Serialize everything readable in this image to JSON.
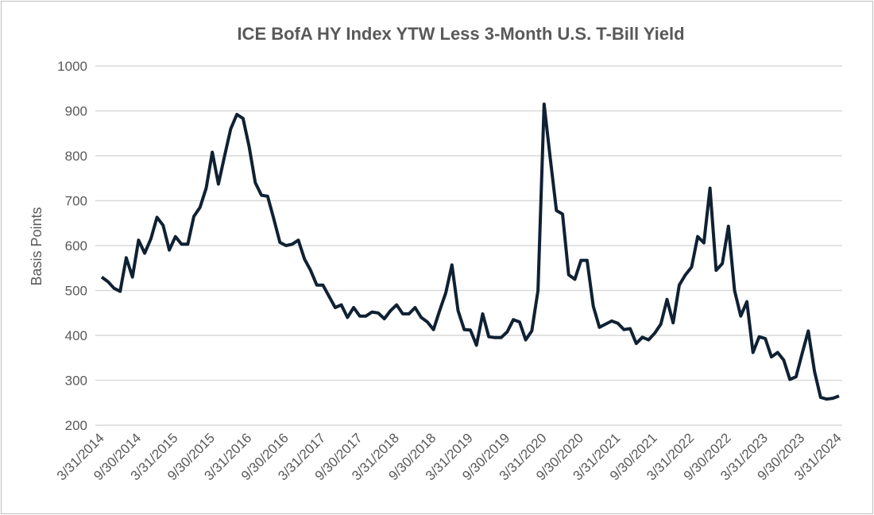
{
  "chart_data": {
    "type": "line",
    "title": "ICE BofA HY Index YTW Less 3-Month U.S. T-Bill Yield",
    "xlabel": "",
    "ylabel": "Basis Points",
    "ylim": [
      200,
      1000
    ],
    "y_ticks": [
      200,
      300,
      400,
      500,
      600,
      700,
      800,
      900,
      1000
    ],
    "x_tick_labels": [
      "3/31/2014",
      "9/30/2014",
      "3/31/2015",
      "9/30/2015",
      "3/31/2016",
      "9/30/2016",
      "3/31/2017",
      "9/30/2017",
      "3/31/2018",
      "9/30/2018",
      "3/31/2019",
      "9/30/2019",
      "3/31/2020",
      "9/30/2020",
      "3/31/2021",
      "9/30/2021",
      "3/31/2022",
      "9/30/2022",
      "3/31/2023",
      "9/30/2023",
      "3/31/2024"
    ],
    "grid": "horizontal",
    "line_color": "#0f2133",
    "x": [
      "3/31/2014",
      "4/30/2014",
      "5/31/2014",
      "6/30/2014",
      "7/31/2014",
      "8/31/2014",
      "9/30/2014",
      "10/31/2014",
      "11/30/2014",
      "12/31/2014",
      "1/31/2015",
      "2/28/2015",
      "3/31/2015",
      "4/30/2015",
      "5/31/2015",
      "6/30/2015",
      "7/31/2015",
      "8/31/2015",
      "9/30/2015",
      "10/31/2015",
      "11/30/2015",
      "12/31/2015",
      "1/31/2016",
      "2/29/2016",
      "3/31/2016",
      "4/30/2016",
      "5/31/2016",
      "6/30/2016",
      "7/31/2016",
      "8/31/2016",
      "9/30/2016",
      "10/31/2016",
      "11/30/2016",
      "12/31/2016",
      "1/31/2017",
      "2/28/2017",
      "3/31/2017",
      "4/30/2017",
      "5/31/2017",
      "6/30/2017",
      "7/31/2017",
      "8/31/2017",
      "9/30/2017",
      "10/31/2017",
      "11/30/2017",
      "12/31/2017",
      "1/31/2018",
      "2/28/2018",
      "3/31/2018",
      "4/30/2018",
      "5/31/2018",
      "6/30/2018",
      "7/31/2018",
      "8/31/2018",
      "9/30/2018",
      "10/31/2018",
      "11/30/2018",
      "12/31/2018",
      "1/31/2019",
      "2/28/2019",
      "3/31/2019",
      "4/30/2019",
      "5/31/2019",
      "6/30/2019",
      "7/31/2019",
      "8/31/2019",
      "9/30/2019",
      "10/31/2019",
      "11/30/2019",
      "12/31/2019",
      "1/31/2020",
      "2/29/2020",
      "3/31/2020",
      "4/30/2020",
      "5/31/2020",
      "6/30/2020",
      "7/31/2020",
      "8/31/2020",
      "9/30/2020",
      "10/31/2020",
      "11/30/2020",
      "12/31/2020",
      "1/31/2021",
      "2/28/2021",
      "3/31/2021",
      "4/30/2021",
      "5/31/2021",
      "6/30/2021",
      "7/31/2021",
      "8/31/2021",
      "9/30/2021",
      "10/31/2021",
      "11/30/2021",
      "12/31/2021",
      "1/31/2022",
      "2/28/2022",
      "3/31/2022",
      "4/30/2022",
      "5/31/2022",
      "6/30/2022",
      "7/31/2022",
      "8/31/2022",
      "9/30/2022",
      "10/31/2022",
      "11/30/2022",
      "12/31/2022",
      "1/31/2023",
      "2/28/2023",
      "3/31/2023",
      "4/30/2023",
      "5/31/2023",
      "6/30/2023",
      "7/31/2023",
      "8/31/2023",
      "9/30/2023",
      "10/31/2023",
      "11/30/2023",
      "12/31/2023",
      "1/31/2024",
      "2/29/2024",
      "3/31/2024"
    ],
    "values": [
      530,
      520,
      505,
      498,
      573,
      530,
      612,
      583,
      615,
      663,
      645,
      590,
      620,
      603,
      603,
      665,
      685,
      728,
      808,
      737,
      800,
      860,
      892,
      883,
      820,
      740,
      712,
      710,
      660,
      607,
      600,
      603,
      612,
      570,
      545,
      512,
      512,
      487,
      462,
      468,
      440,
      462,
      443,
      443,
      452,
      450,
      437,
      455,
      468,
      448,
      448,
      462,
      440,
      430,
      413,
      455,
      495,
      557,
      455,
      413,
      412,
      378,
      448,
      397,
      395,
      395,
      408,
      435,
      430,
      390,
      410,
      500,
      915,
      795,
      678,
      670,
      535,
      525,
      567,
      567,
      465,
      418,
      425,
      432,
      427,
      413,
      415,
      382,
      396,
      390,
      405,
      425,
      480,
      428,
      512,
      535,
      552,
      620,
      606,
      728,
      545,
      560,
      643,
      500,
      443,
      475,
      362,
      397,
      393,
      352,
      362,
      345,
      302,
      308,
      360,
      410,
      320,
      262,
      258,
      260,
      265
    ]
  }
}
